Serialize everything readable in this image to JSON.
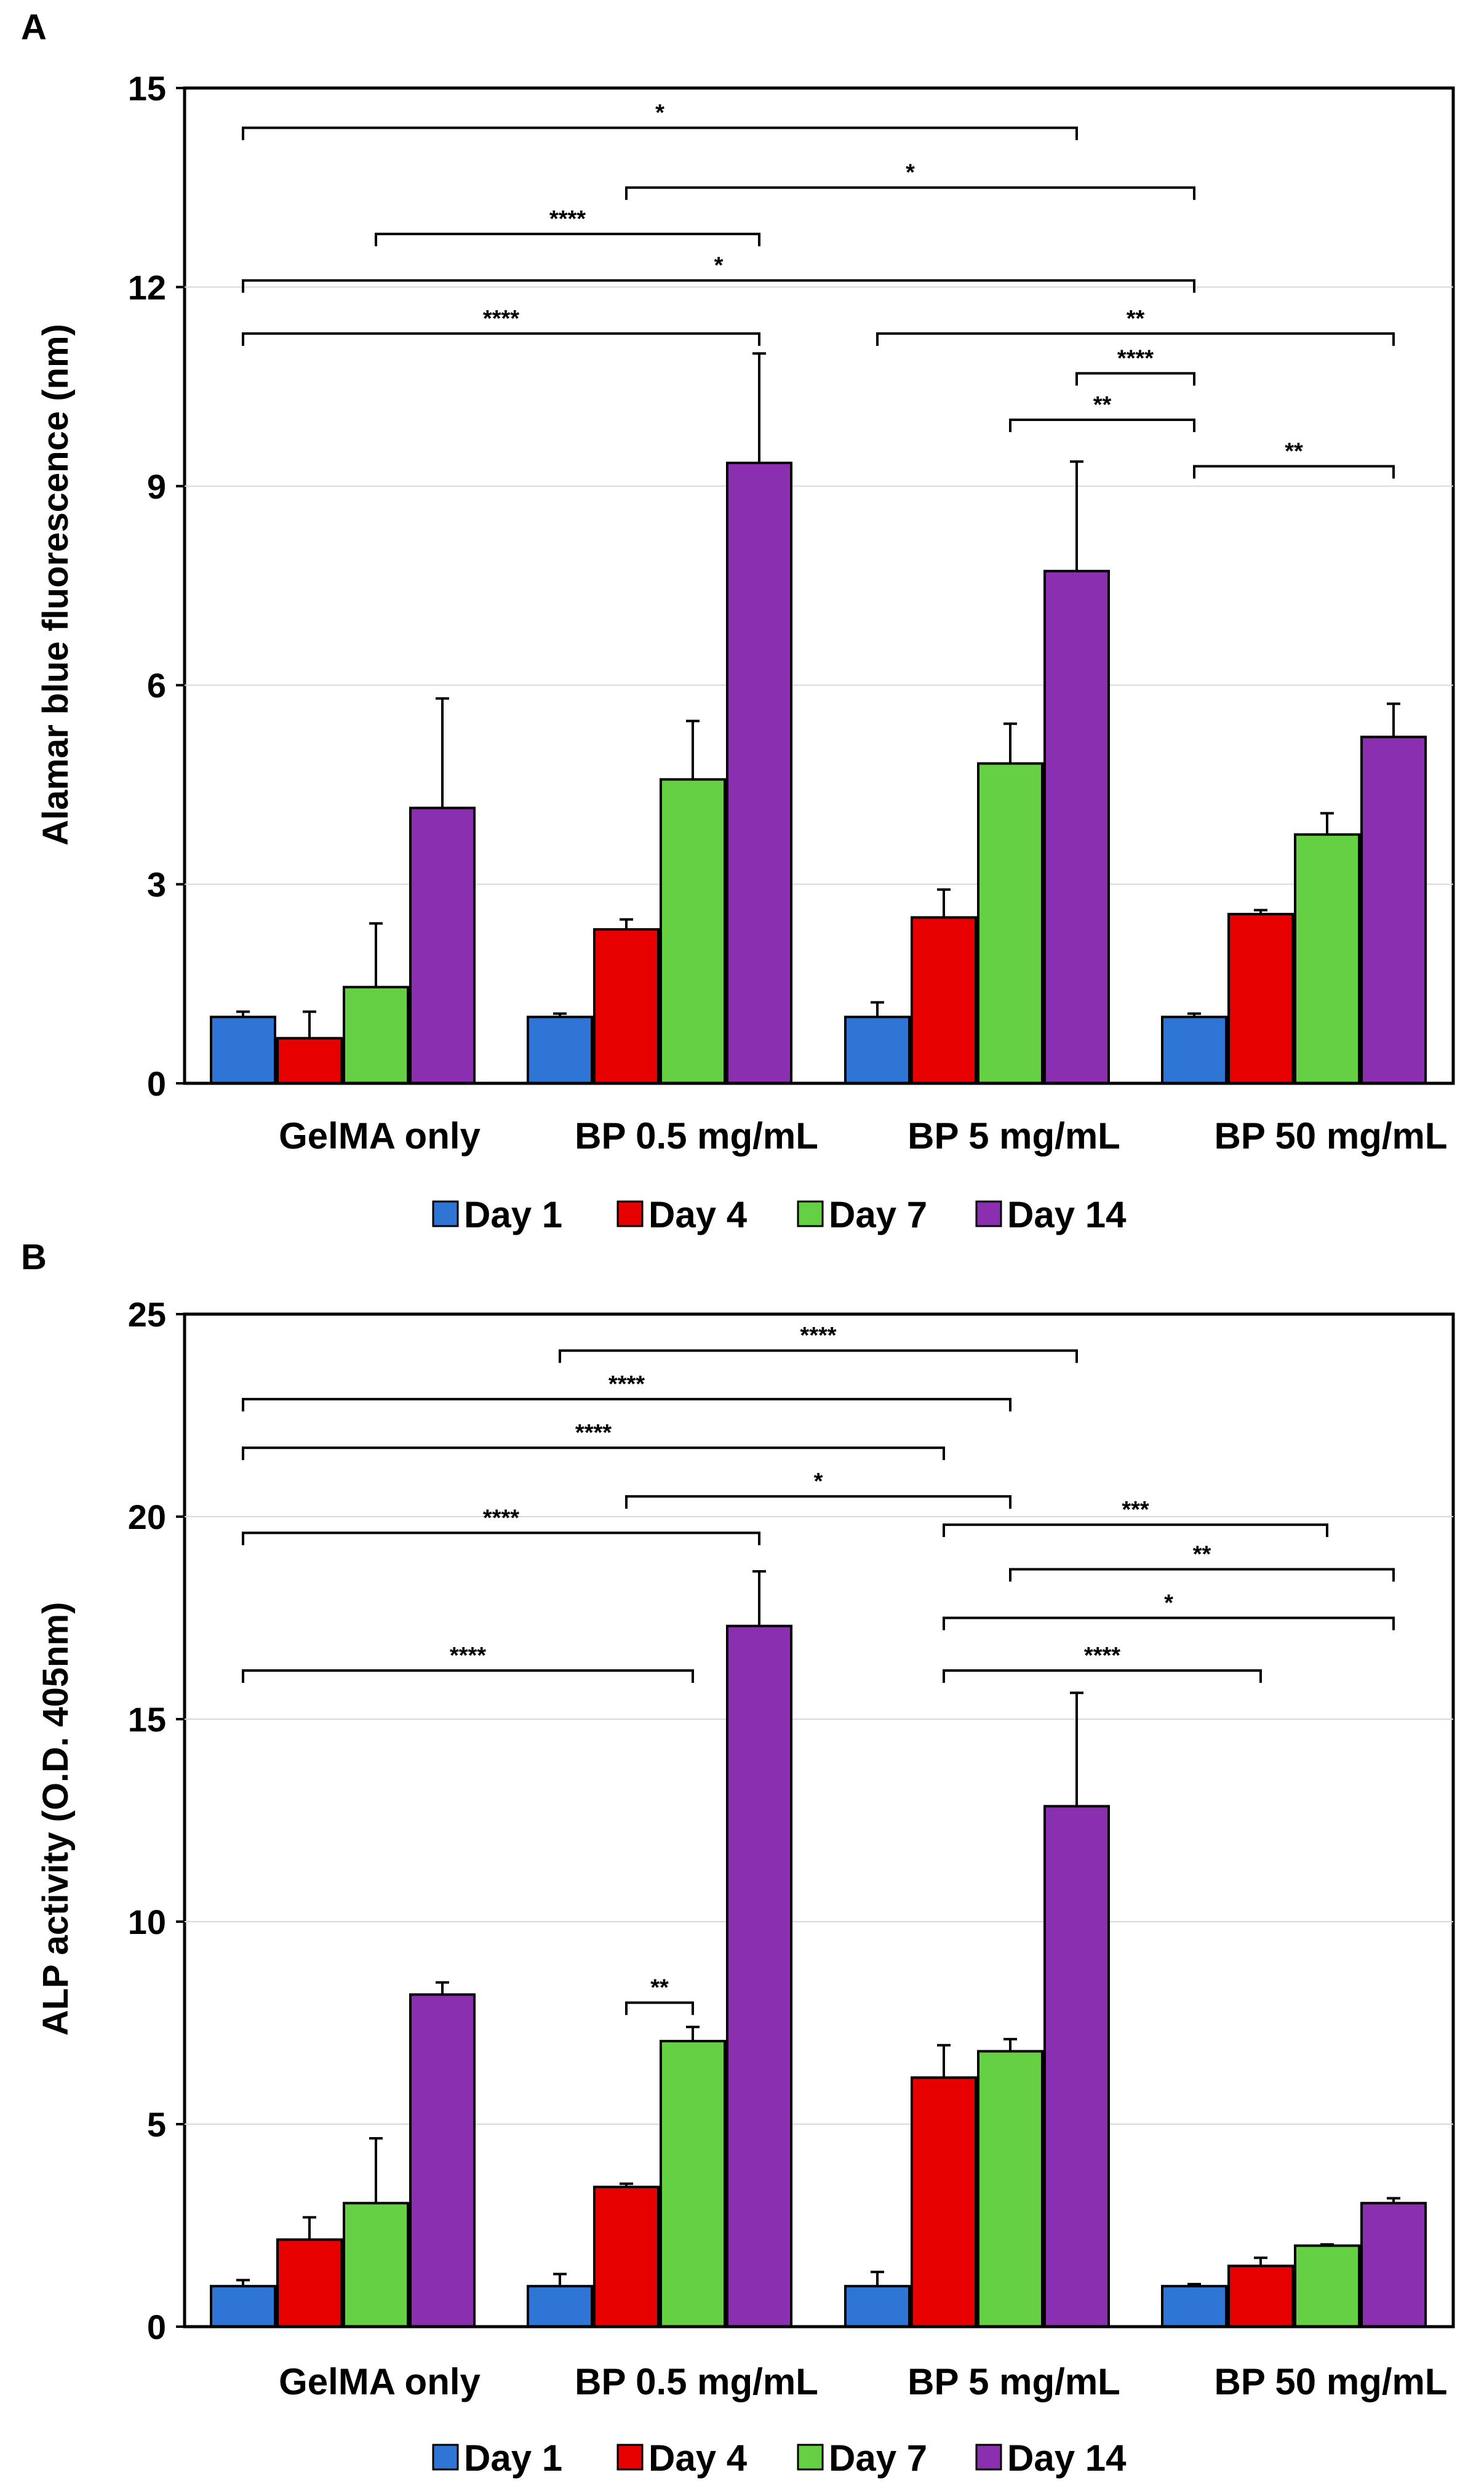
{
  "chart_data": [
    {
      "panel": "A",
      "type": "bar",
      "ylabel": "Alamar blue fluorescence (nm)",
      "ylim": [
        0,
        15
      ],
      "yticks": [
        0,
        3,
        6,
        9,
        12,
        15
      ],
      "categories": [
        "GelMA only",
        "BP 0.5 mg/mL",
        "BP 5 mg/mL",
        "BP 50 mg/mL"
      ],
      "series": [
        {
          "name": "Day 1",
          "color": "#2e75d6",
          "values": [
            1.0,
            1.0,
            1.0,
            1.0
          ],
          "errors": [
            0.08,
            0.05,
            0.22,
            0.05
          ]
        },
        {
          "name": "Day 4",
          "color": "#e60000",
          "values": [
            0.68,
            2.32,
            2.5,
            2.55
          ],
          "errors": [
            0.4,
            0.15,
            0.42,
            0.06
          ]
        },
        {
          "name": "Day 7",
          "color": "#66d044",
          "values": [
            1.45,
            4.58,
            4.82,
            3.75
          ],
          "errors": [
            0.96,
            0.88,
            0.6,
            0.32
          ]
        },
        {
          "name": "Day 14",
          "color": "#8a2fb0",
          "values": [
            4.15,
            9.35,
            7.72,
            5.22
          ],
          "errors": [
            1.65,
            1.65,
            1.65,
            0.5
          ]
        }
      ],
      "significance": [
        {
          "label": "*",
          "y": 14.4,
          "from": [
            0,
            0
          ],
          "to": [
            2,
            3
          ]
        },
        {
          "label": "*",
          "y": 13.5,
          "from": [
            1,
            1
          ],
          "to": [
            3,
            0
          ]
        },
        {
          "label": "****",
          "y": 12.8,
          "from": [
            0,
            2
          ],
          "to": [
            1,
            3
          ]
        },
        {
          "label": "*",
          "y": 12.1,
          "from": [
            0,
            0
          ],
          "to": [
            3,
            0
          ]
        },
        {
          "label": "****",
          "y": 11.3,
          "from": [
            0,
            0
          ],
          "to": [
            1,
            3
          ]
        },
        {
          "label": "**",
          "y": 11.3,
          "from": [
            2,
            0
          ],
          "to": [
            3,
            3
          ]
        },
        {
          "label": "****",
          "y": 10.7,
          "from": [
            2,
            3
          ],
          "to": [
            3,
            0
          ]
        },
        {
          "label": "**",
          "y": 10.0,
          "from": [
            2,
            2
          ],
          "to": [
            3,
            0
          ]
        },
        {
          "label": "**",
          "y": 9.3,
          "from": [
            3,
            0
          ],
          "to": [
            3,
            3
          ]
        }
      ]
    },
    {
      "panel": "B",
      "type": "bar",
      "ylabel": "ALP activity (O.D. 405nm)",
      "ylim": [
        0,
        25
      ],
      "yticks": [
        0,
        5,
        10,
        15,
        20,
        25
      ],
      "categories": [
        "GelMA only",
        "BP 0.5 mg/mL",
        "BP 5 mg/mL",
        "BP 50 mg/mL"
      ],
      "series": [
        {
          "name": "Day 1",
          "color": "#2e75d6",
          "values": [
            1.0,
            1.0,
            1.0,
            1.0
          ],
          "errors": [
            0.15,
            0.3,
            0.35,
            0.05
          ]
        },
        {
          "name": "Day 4",
          "color": "#e60000",
          "values": [
            2.15,
            3.45,
            6.15,
            1.5
          ],
          "errors": [
            0.55,
            0.08,
            0.8,
            0.2
          ]
        },
        {
          "name": "Day 7",
          "color": "#66d044",
          "values": [
            3.05,
            7.05,
            6.8,
            2.0
          ],
          "errors": [
            1.6,
            0.35,
            0.3,
            0.03
          ]
        },
        {
          "name": "Day 14",
          "color": "#8a2fb0",
          "values": [
            8.2,
            17.3,
            12.85,
            3.05
          ],
          "errors": [
            0.3,
            1.35,
            2.8,
            0.12
          ]
        }
      ],
      "significance": [
        {
          "label": "****",
          "y": 24.1,
          "from": [
            1,
            0
          ],
          "to": [
            2,
            3
          ]
        },
        {
          "label": "****",
          "y": 22.9,
          "from": [
            0,
            0
          ],
          "to": [
            2,
            2
          ]
        },
        {
          "label": "****",
          "y": 21.7,
          "from": [
            0,
            0
          ],
          "to": [
            2,
            1
          ]
        },
        {
          "label": "*",
          "y": 20.5,
          "from": [
            1,
            1
          ],
          "to": [
            2,
            2
          ]
        },
        {
          "label": "****",
          "y": 19.6,
          "from": [
            0,
            0
          ],
          "to": [
            1,
            3
          ]
        },
        {
          "label": "***",
          "y": 19.8,
          "from": [
            2,
            1
          ],
          "to": [
            3,
            2
          ]
        },
        {
          "label": "**",
          "y": 18.7,
          "from": [
            2,
            2
          ],
          "to": [
            3,
            3
          ]
        },
        {
          "label": "*",
          "y": 17.5,
          "from": [
            2,
            1
          ],
          "to": [
            3,
            3
          ]
        },
        {
          "label": "****",
          "y": 16.2,
          "from": [
            0,
            0
          ],
          "to": [
            1,
            2
          ]
        },
        {
          "label": "****",
          "y": 16.2,
          "from": [
            2,
            1
          ],
          "to": [
            3,
            1
          ]
        },
        {
          "label": "**",
          "y": 8.0,
          "from": [
            1,
            1
          ],
          "to": [
            1,
            2
          ]
        }
      ]
    }
  ]
}
